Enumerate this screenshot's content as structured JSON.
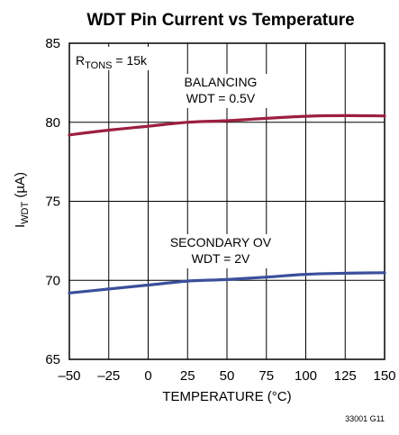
{
  "chart_data": {
    "type": "line",
    "title": "WDT Pin Current vs Temperature",
    "xlabel": "TEMPERATURE (°C)",
    "ylabel": {
      "main": "I",
      "sub": "WDT",
      "unit": " (µA)"
    },
    "xlim": [
      -50,
      150
    ],
    "ylim": [
      65,
      85
    ],
    "x_ticks": [
      -50,
      -25,
      0,
      25,
      50,
      75,
      100,
      125,
      150
    ],
    "x_tick_labels": [
      "–50",
      "–25",
      "0",
      "25",
      "50",
      "75",
      "100",
      "125",
      "150"
    ],
    "y_ticks": [
      65,
      70,
      75,
      80,
      85
    ],
    "grid": true,
    "condition": {
      "main": "R",
      "sub": "TONS",
      "rest": " = 15k"
    },
    "series": [
      {
        "name": "BALANCING WDT = 0.5V",
        "label_lines": [
          "BALANCING",
          "WDT = 0.5V"
        ],
        "color": "#9c1f3f",
        "x": [
          -50,
          -25,
          0,
          25,
          50,
          75,
          100,
          125,
          150
        ],
        "y": [
          79.2,
          79.5,
          79.75,
          80.0,
          80.1,
          80.25,
          80.38,
          80.42,
          80.4
        ]
      },
      {
        "name": "SECONDARY OV WDT = 2V",
        "label_lines": [
          "SECONDARY OV",
          "WDT = 2V"
        ],
        "color": "#3b4f9c",
        "x": [
          -50,
          -25,
          0,
          25,
          50,
          75,
          100,
          125,
          150
        ],
        "y": [
          69.2,
          69.45,
          69.7,
          69.95,
          70.05,
          70.2,
          70.38,
          70.45,
          70.48
        ]
      }
    ]
  },
  "figure_id": "33001 G11"
}
